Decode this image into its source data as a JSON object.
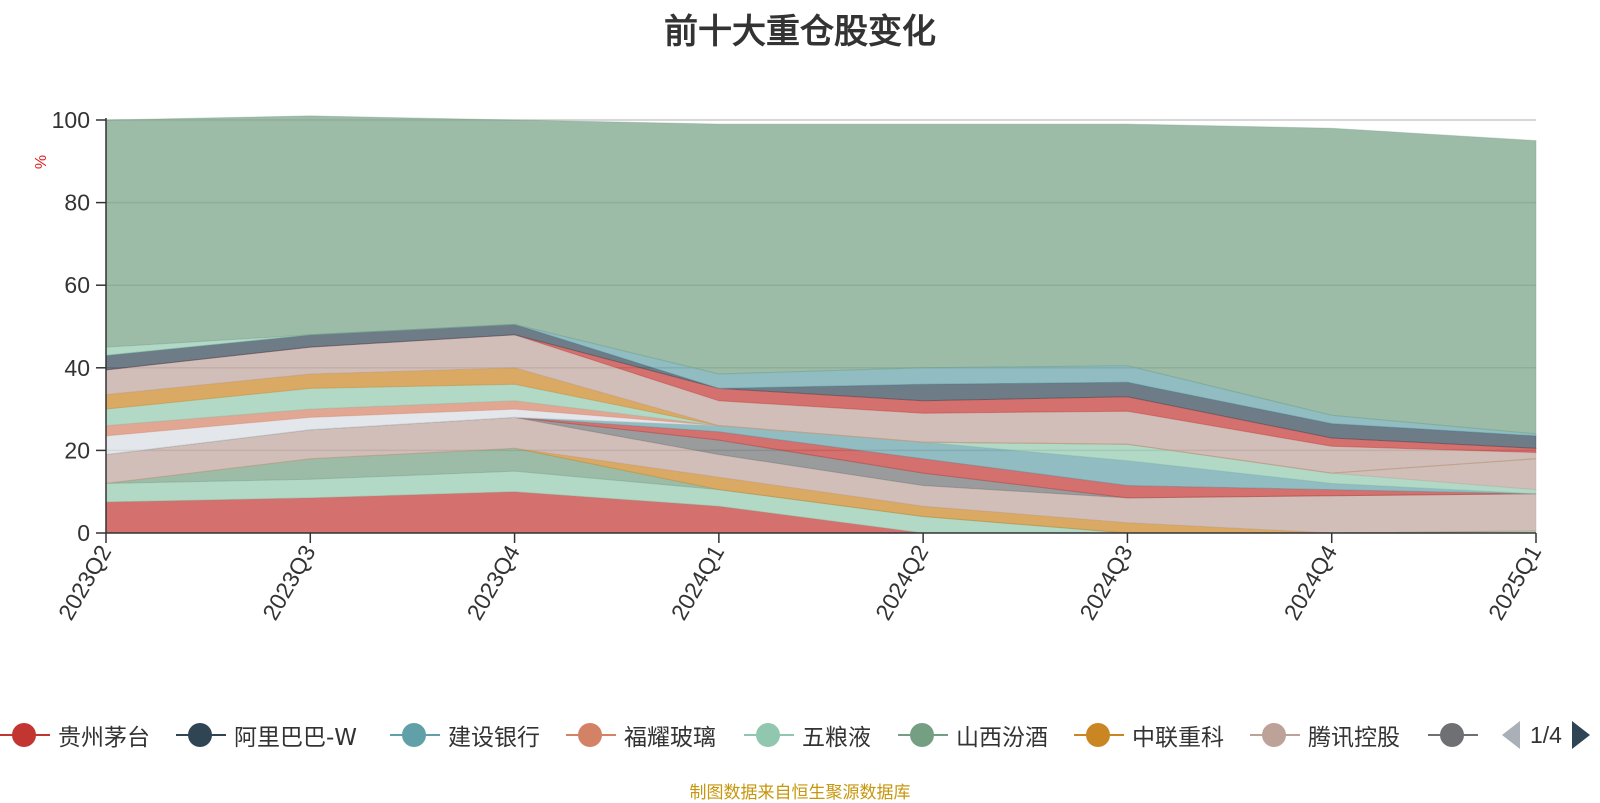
{
  "chart_data": {
    "type": "area",
    "title": "前十大重仓股变化",
    "ylabel": "%",
    "ylim": [
      0,
      100
    ],
    "yticks": [
      0,
      20,
      40,
      60,
      80,
      100
    ],
    "stacked": true,
    "categories": [
      "2023Q2",
      "2023Q3",
      "2023Q4",
      "2024Q1",
      "2024Q2",
      "2024Q3",
      "2024Q4",
      "2025Q1"
    ],
    "series": [
      {
        "name": "贵州茅台",
        "color": "#c23531",
        "values": [
          7.5,
          8.5,
          10.0,
          6.5,
          0.0,
          0.0,
          0.0,
          0.0
        ]
      },
      {
        "name": "",
        "color": "#91c7ae",
        "values": [
          4.5,
          4.5,
          5.0,
          4.0,
          4.0,
          0.0,
          0.0,
          0.5
        ]
      },
      {
        "name": "山西汾酒",
        "color": "#749f83",
        "values": [
          0.0,
          5.0,
          5.5,
          0.0,
          0.0,
          0.0,
          0.0,
          0.0
        ]
      },
      {
        "name": "中联重科",
        "color": "#ca8622",
        "values": [
          0.0,
          0.0,
          0.0,
          3.0,
          2.5,
          2.5,
          0.0,
          0.0
        ]
      },
      {
        "name": "腾讯控股",
        "color": "#bda29a",
        "values": [
          7.0,
          7.0,
          7.5,
          5.5,
          5.0,
          6.0,
          9.0,
          9.0
        ]
      },
      {
        "name": "",
        "color": "#6e7074",
        "values": [
          0.0,
          0.0,
          0.0,
          3.5,
          3.0,
          0.0,
          0.0,
          0.0
        ]
      },
      {
        "name": "",
        "color": "#c23531",
        "values": [
          0.0,
          0.0,
          0.0,
          2.0,
          3.5,
          3.0,
          1.5,
          0.0
        ]
      },
      {
        "name": "",
        "color": "#61a0a8",
        "values": [
          0.0,
          0.0,
          0.0,
          1.5,
          4.0,
          6.0,
          1.5,
          0.0
        ]
      },
      {
        "name": "",
        "color": "#91c7ae",
        "values": [
          0.0,
          0.0,
          0.0,
          0.0,
          0.0,
          4.0,
          2.5,
          1.0
        ]
      },
      {
        "name": "",
        "color": "#bda29a",
        "values": [
          0.0,
          0.0,
          0.0,
          0.0,
          0.0,
          0.0,
          0.0,
          7.5
        ]
      },
      {
        "name": "",
        "color": "#d7dde4",
        "values": [
          4.5,
          3.0,
          2.0,
          0.0,
          0.0,
          0.0,
          0.0,
          0.0
        ]
      },
      {
        "name": "福耀玻璃",
        "color": "#d48265",
        "values": [
          2.5,
          2.0,
          2.0,
          0.0,
          0.0,
          0.0,
          0.0,
          0.0
        ]
      },
      {
        "name": "五粮液",
        "color": "#91c7ae",
        "values": [
          4.0,
          5.0,
          4.0,
          0.0,
          0.0,
          0.0,
          0.0,
          0.0
        ]
      },
      {
        "name": "",
        "color": "#ca8622",
        "values": [
          3.5,
          3.5,
          4.0,
          0.0,
          0.0,
          0.0,
          0.0,
          0.0
        ]
      },
      {
        "name": "",
        "color": "#bda29a",
        "values": [
          6.0,
          6.5,
          8.0,
          6.0,
          7.0,
          8.0,
          6.5,
          1.5
        ]
      },
      {
        "name": "",
        "color": "#c23531",
        "values": [
          0.0,
          0.0,
          0.0,
          3.0,
          3.0,
          3.5,
          2.0,
          1.0
        ]
      },
      {
        "name": "",
        "color": "#2f4554",
        "values": [
          3.5,
          3.0,
          2.5,
          0.0,
          4.0,
          3.5,
          3.5,
          3.0
        ]
      },
      {
        "name": "建设银行",
        "color": "#61a0a8",
        "values": [
          0.0,
          0.0,
          0.0,
          3.5,
          4.0,
          4.0,
          2.0,
          0.5
        ]
      },
      {
        "name": "",
        "color": "#91c7ae",
        "values": [
          2.0,
          0.0,
          0.0,
          0.0,
          0.0,
          0.0,
          0.0,
          0.0
        ]
      },
      {
        "name": "",
        "color": "#749f83",
        "values": [
          55.0,
          53.0,
          49.5,
          60.5,
          59.0,
          58.5,
          69.5,
          71.0
        ]
      }
    ],
    "grid": true,
    "legend_position": "bottom"
  },
  "legend": {
    "items": [
      {
        "label": "贵州茅台",
        "color": "#c23531",
        "icon": "circle-line-icon"
      },
      {
        "label": "阿里巴巴-W",
        "color": "#2f4554",
        "icon": "circle-line-icon"
      },
      {
        "label": "建设银行",
        "color": "#61a0a8",
        "icon": "circle-line-icon"
      },
      {
        "label": "福耀玻璃",
        "color": "#d48265",
        "icon": "circle-line-icon"
      },
      {
        "label": "五粮液",
        "color": "#91c7ae",
        "icon": "circle-line-icon"
      },
      {
        "label": "山西汾酒",
        "color": "#749f83",
        "icon": "circle-line-icon"
      },
      {
        "label": "中联重科",
        "color": "#ca8622",
        "icon": "circle-line-icon"
      },
      {
        "label": "腾讯控股",
        "color": "#bda29a",
        "icon": "circle-line-icon"
      },
      {
        "label": "",
        "color": "#6e7074",
        "icon": "circle-line-icon"
      }
    ],
    "pager": "1/4",
    "prev_icon": "triangle-left-icon",
    "next_icon": "triangle-right-icon"
  },
  "source_note": "制图数据来自恒生聚源数据库"
}
